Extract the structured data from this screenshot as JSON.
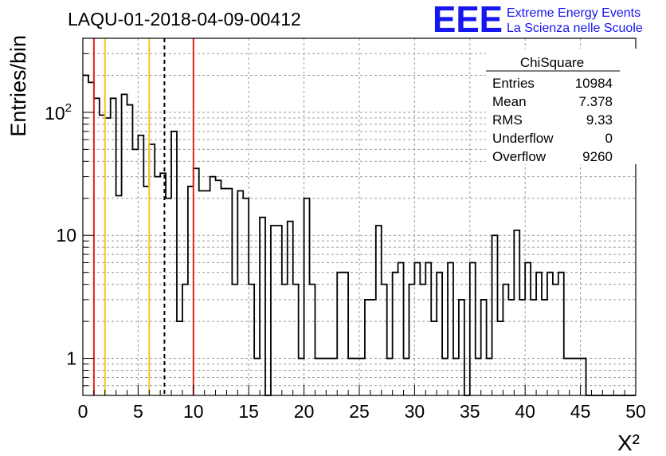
{
  "logo": {
    "mark": "EEE",
    "line1": "Extreme Energy Events",
    "line2": "La Scienza nelle Scuole",
    "color": "#1616ee"
  },
  "chart_data": {
    "type": "bar",
    "title": "LAQU-01-2018-04-09-00412",
    "xlabel": "X²",
    "ylabel": "Entries/bin",
    "xlim": [
      0,
      50
    ],
    "ylim": [
      0.5,
      400
    ],
    "yscale": "log",
    "grid": true,
    "bin_width": 0.5,
    "x_ticks": [
      "0",
      "5",
      "10",
      "15",
      "20",
      "25",
      "30",
      "35",
      "40",
      "45",
      "50"
    ],
    "y_ticks": [
      {
        "value": 1,
        "label": "1"
      },
      {
        "value": 10,
        "label": "10"
      },
      {
        "value": 100,
        "label": "10",
        "exponent": "2"
      }
    ],
    "values": [
      200,
      175,
      130,
      95,
      90,
      130,
      21,
      140,
      115,
      50,
      65,
      25,
      55,
      30,
      32,
      20,
      70,
      2,
      4,
      25,
      35,
      23,
      23,
      30,
      28,
      24,
      24,
      4,
      23,
      20,
      4,
      1,
      14,
      0,
      12,
      12,
      4,
      13,
      4,
      1,
      20,
      4,
      1,
      1,
      1,
      1,
      5,
      5,
      1,
      1,
      1,
      3,
      3,
      12,
      4,
      1,
      5,
      6,
      1,
      4,
      6,
      4,
      6,
      2,
      5,
      1,
      6,
      1,
      3,
      0,
      6,
      1,
      3,
      1,
      10,
      2,
      4,
      3,
      11,
      3,
      6,
      3,
      5,
      3,
      5,
      4,
      5,
      1,
      1,
      1,
      1,
      0,
      0,
      0,
      0,
      0,
      0,
      0,
      0,
      0,
      0,
      0,
      0,
      0,
      0,
      0,
      0,
      0,
      0,
      0,
      0,
      0,
      0,
      0,
      0,
      0,
      0,
      0,
      0,
      0,
      0,
      0,
      0,
      0,
      0,
      0,
      0,
      0,
      0,
      0,
      0,
      0,
      0,
      0,
      0,
      0,
      0,
      0,
      0,
      0,
      0,
      0,
      0,
      0,
      0,
      0,
      0,
      0,
      0,
      0,
      0,
      0,
      0,
      0,
      0,
      0,
      0,
      0,
      0,
      0,
      0
    ],
    "vlines": [
      {
        "x": 1,
        "color": "#e8201a",
        "style": "solid"
      },
      {
        "x": 2,
        "color": "#f4c430",
        "style": "solid"
      },
      {
        "x": 6,
        "color": "#f4c430",
        "style": "solid"
      },
      {
        "x": 7.378,
        "color": "#000000",
        "style": "dashed"
      },
      {
        "x": 10,
        "color": "#e8201a",
        "style": "solid"
      }
    ],
    "stats": {
      "title": "ChiSquare",
      "rows": [
        {
          "label": "Entries",
          "value": "10984"
        },
        {
          "label": "Mean",
          "value": "7.378"
        },
        {
          "label": "RMS",
          "value": "9.33"
        },
        {
          "label": "Underflow",
          "value": "0"
        },
        {
          "label": "Overflow",
          "value": "9260"
        }
      ]
    }
  }
}
